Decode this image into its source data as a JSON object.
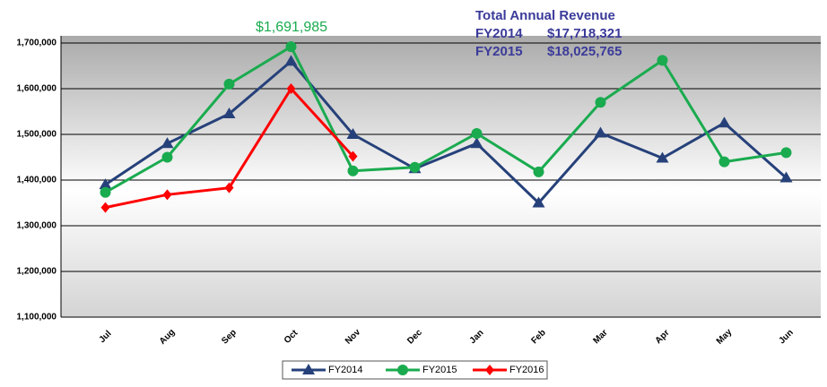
{
  "chart_data": {
    "type": "line",
    "categories": [
      "Jul",
      "Aug",
      "Sep",
      "Oct",
      "Nov",
      "Dec",
      "Jan",
      "Feb",
      "Mar",
      "Apr",
      "May",
      "Jun"
    ],
    "series": [
      {
        "name": "FY2014",
        "color": "#26417a",
        "marker": "triangle",
        "values": [
          1390000,
          1480000,
          1545000,
          1660000,
          1500000,
          1425000,
          1480000,
          1350000,
          1503000,
          1448000,
          1525000,
          1405000
        ]
      },
      {
        "name": "FY2015",
        "color": "#1aab4f",
        "marker": "circle",
        "values": [
          1373000,
          1450000,
          1610000,
          1691985,
          1420000,
          1428000,
          1502000,
          1418000,
          1570000,
          1662000,
          1440000,
          1460000
        ]
      },
      {
        "name": "FY2016",
        "color": "#ff0000",
        "marker": "diamond",
        "values": [
          1340000,
          1368000,
          1383000,
          1600000,
          1452000,
          null,
          null,
          null,
          null,
          null,
          null,
          null
        ]
      }
    ],
    "ylim": [
      1100000,
      1700000
    ],
    "yticks": [
      {
        "value": 1100000,
        "label": "1,100,000"
      },
      {
        "value": 1200000,
        "label": "1,200,000"
      },
      {
        "value": 1300000,
        "label": "1,300,000"
      },
      {
        "value": 1400000,
        "label": "1,400,000"
      },
      {
        "value": 1500000,
        "label": "1,500,000"
      },
      {
        "value": 1600000,
        "label": "1,600,000"
      },
      {
        "value": 1700000,
        "label": "1,700,000"
      }
    ],
    "grid": true,
    "legend": "bottom",
    "peak_annotation": "$1,691,985",
    "revenue_box": {
      "title": "Total Annual Revenue",
      "rows": [
        [
          "FY2014",
          "$17,718,321"
        ],
        [
          "FY2015",
          "$18,025,765"
        ]
      ]
    }
  }
}
